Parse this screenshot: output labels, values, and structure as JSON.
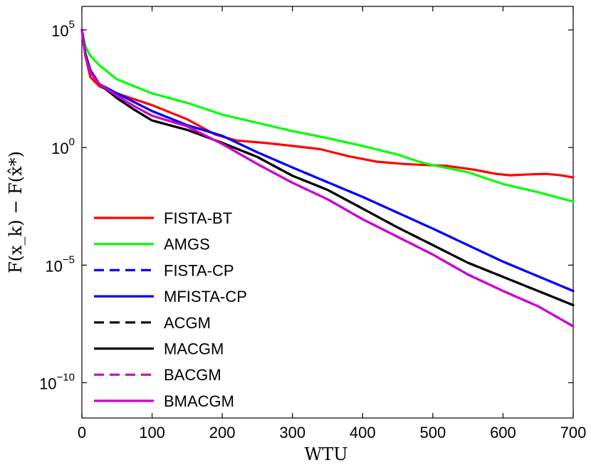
{
  "chart_data": {
    "type": "line",
    "xlabel": "WTU",
    "ylabel": "F(x_k) − F(x̂*)",
    "xlim": [
      0,
      700
    ],
    "ylim_log10": [
      -11.5,
      6
    ],
    "yscale": "log",
    "grid": false,
    "legend_position": "lower-left",
    "x_ticks": [
      {
        "value": 0,
        "label": "0"
      },
      {
        "value": 100,
        "label": "100"
      },
      {
        "value": 200,
        "label": "200"
      },
      {
        "value": 300,
        "label": "300"
      },
      {
        "value": 400,
        "label": "400"
      },
      {
        "value": 500,
        "label": "500"
      },
      {
        "value": 600,
        "label": "600"
      },
      {
        "value": 700,
        "label": "700"
      }
    ],
    "y_ticks": [
      {
        "exp": 5,
        "base": "10",
        "sup": "5"
      },
      {
        "exp": 0,
        "base": "10",
        "sup": "0"
      },
      {
        "exp": -5,
        "base": "10",
        "sup": "−5"
      },
      {
        "exp": -10,
        "base": "10",
        "sup": "−10"
      }
    ],
    "series": [
      {
        "name": "FISTA-BT",
        "color": "#ff0000",
        "dash": false,
        "points": [
          [
            0,
            5.0
          ],
          [
            5,
            3.9
          ],
          [
            12,
            3.0
          ],
          [
            25,
            2.6
          ],
          [
            50,
            2.3
          ],
          [
            100,
            1.8
          ],
          [
            150,
            1.2
          ],
          [
            190,
            0.55
          ],
          [
            220,
            0.3
          ],
          [
            260,
            0.2
          ],
          [
            300,
            0.07
          ],
          [
            340,
            -0.07
          ],
          [
            380,
            -0.37
          ],
          [
            420,
            -0.6
          ],
          [
            460,
            -0.7
          ],
          [
            480,
            -0.73
          ],
          [
            520,
            -0.78
          ],
          [
            560,
            -0.95
          ],
          [
            590,
            -1.12
          ],
          [
            610,
            -1.18
          ],
          [
            640,
            -1.14
          ],
          [
            660,
            -1.12
          ],
          [
            680,
            -1.17
          ],
          [
            700,
            -1.27
          ]
        ]
      },
      {
        "name": "AMGS",
        "color": "#00ff00",
        "dash": false,
        "points": [
          [
            0,
            5.0
          ],
          [
            5,
            4.3
          ],
          [
            12,
            3.9
          ],
          [
            25,
            3.5
          ],
          [
            50,
            2.9
          ],
          [
            100,
            2.3
          ],
          [
            150,
            1.9
          ],
          [
            200,
            1.4
          ],
          [
            250,
            1.05
          ],
          [
            300,
            0.7
          ],
          [
            350,
            0.4
          ],
          [
            400,
            0.07
          ],
          [
            450,
            -0.3
          ],
          [
            480,
            -0.6
          ],
          [
            500,
            -0.75
          ],
          [
            550,
            -1.05
          ],
          [
            600,
            -1.55
          ],
          [
            650,
            -1.9
          ],
          [
            700,
            -2.3
          ]
        ]
      },
      {
        "name": "FISTA-CP",
        "color": "#0000ff",
        "dash": true,
        "points": [
          [
            0,
            5.0
          ],
          [
            5,
            4.0
          ],
          [
            12,
            3.3
          ],
          [
            25,
            2.7
          ],
          [
            50,
            2.3
          ],
          [
            100,
            1.55
          ],
          [
            150,
            0.95
          ],
          [
            200,
            0.5
          ],
          [
            250,
            -0.2
          ],
          [
            300,
            -0.85
          ],
          [
            400,
            -2.1
          ],
          [
            500,
            -3.45
          ],
          [
            600,
            -4.85
          ],
          [
            700,
            -6.1
          ]
        ]
      },
      {
        "name": "MFISTA-CP",
        "color": "#0000ff",
        "dash": false,
        "points": [
          [
            0,
            5.0
          ],
          [
            5,
            4.0
          ],
          [
            12,
            3.3
          ],
          [
            25,
            2.7
          ],
          [
            50,
            2.3
          ],
          [
            100,
            1.55
          ],
          [
            150,
            0.95
          ],
          [
            200,
            0.5
          ],
          [
            250,
            -0.2
          ],
          [
            300,
            -0.85
          ],
          [
            400,
            -2.1
          ],
          [
            500,
            -3.45
          ],
          [
            600,
            -4.85
          ],
          [
            700,
            -6.1
          ]
        ]
      },
      {
        "name": "ACGM",
        "color": "#000000",
        "dash": true,
        "points": [
          [
            0,
            5.0
          ],
          [
            5,
            4.0
          ],
          [
            12,
            3.2
          ],
          [
            25,
            2.7
          ],
          [
            50,
            2.1
          ],
          [
            75,
            1.6
          ],
          [
            100,
            1.15
          ],
          [
            150,
            0.75
          ],
          [
            200,
            0.2
          ],
          [
            250,
            -0.4
          ],
          [
            300,
            -1.2
          ],
          [
            350,
            -1.8
          ],
          [
            400,
            -2.6
          ],
          [
            450,
            -3.4
          ],
          [
            500,
            -4.15
          ],
          [
            550,
            -4.9
          ],
          [
            600,
            -5.5
          ],
          [
            650,
            -6.1
          ],
          [
            700,
            -6.7
          ]
        ]
      },
      {
        "name": "MACGM",
        "color": "#000000",
        "dash": false,
        "points": [
          [
            0,
            5.0
          ],
          [
            5,
            4.0
          ],
          [
            12,
            3.2
          ],
          [
            25,
            2.7
          ],
          [
            50,
            2.1
          ],
          [
            75,
            1.6
          ],
          [
            100,
            1.15
          ],
          [
            150,
            0.75
          ],
          [
            200,
            0.2
          ],
          [
            250,
            -0.4
          ],
          [
            300,
            -1.2
          ],
          [
            350,
            -1.8
          ],
          [
            400,
            -2.6
          ],
          [
            450,
            -3.4
          ],
          [
            500,
            -4.15
          ],
          [
            550,
            -4.9
          ],
          [
            600,
            -5.5
          ],
          [
            650,
            -6.1
          ],
          [
            700,
            -6.7
          ]
        ]
      },
      {
        "name": "BACGM",
        "color": "#cc00cc",
        "dash": true,
        "points": [
          [
            0,
            5.0
          ],
          [
            5,
            3.9
          ],
          [
            12,
            3.2
          ],
          [
            25,
            2.7
          ],
          [
            50,
            2.2
          ],
          [
            75,
            1.75
          ],
          [
            100,
            1.35
          ],
          [
            150,
            0.9
          ],
          [
            200,
            0.15
          ],
          [
            250,
            -0.7
          ],
          [
            300,
            -1.5
          ],
          [
            350,
            -2.2
          ],
          [
            400,
            -3.05
          ],
          [
            450,
            -3.8
          ],
          [
            500,
            -4.55
          ],
          [
            550,
            -5.4
          ],
          [
            600,
            -6.1
          ],
          [
            650,
            -6.75
          ],
          [
            700,
            -7.6
          ]
        ]
      },
      {
        "name": "BMACGM",
        "color": "#cc00cc",
        "dash": false,
        "points": [
          [
            0,
            5.0
          ],
          [
            5,
            3.9
          ],
          [
            12,
            3.2
          ],
          [
            25,
            2.7
          ],
          [
            50,
            2.2
          ],
          [
            75,
            1.75
          ],
          [
            100,
            1.35
          ],
          [
            150,
            0.9
          ],
          [
            200,
            0.15
          ],
          [
            250,
            -0.7
          ],
          [
            300,
            -1.5
          ],
          [
            350,
            -2.2
          ],
          [
            400,
            -3.05
          ],
          [
            450,
            -3.8
          ],
          [
            500,
            -4.55
          ],
          [
            550,
            -5.4
          ],
          [
            600,
            -6.1
          ],
          [
            650,
            -6.75
          ],
          [
            700,
            -7.6
          ]
        ]
      }
    ]
  }
}
